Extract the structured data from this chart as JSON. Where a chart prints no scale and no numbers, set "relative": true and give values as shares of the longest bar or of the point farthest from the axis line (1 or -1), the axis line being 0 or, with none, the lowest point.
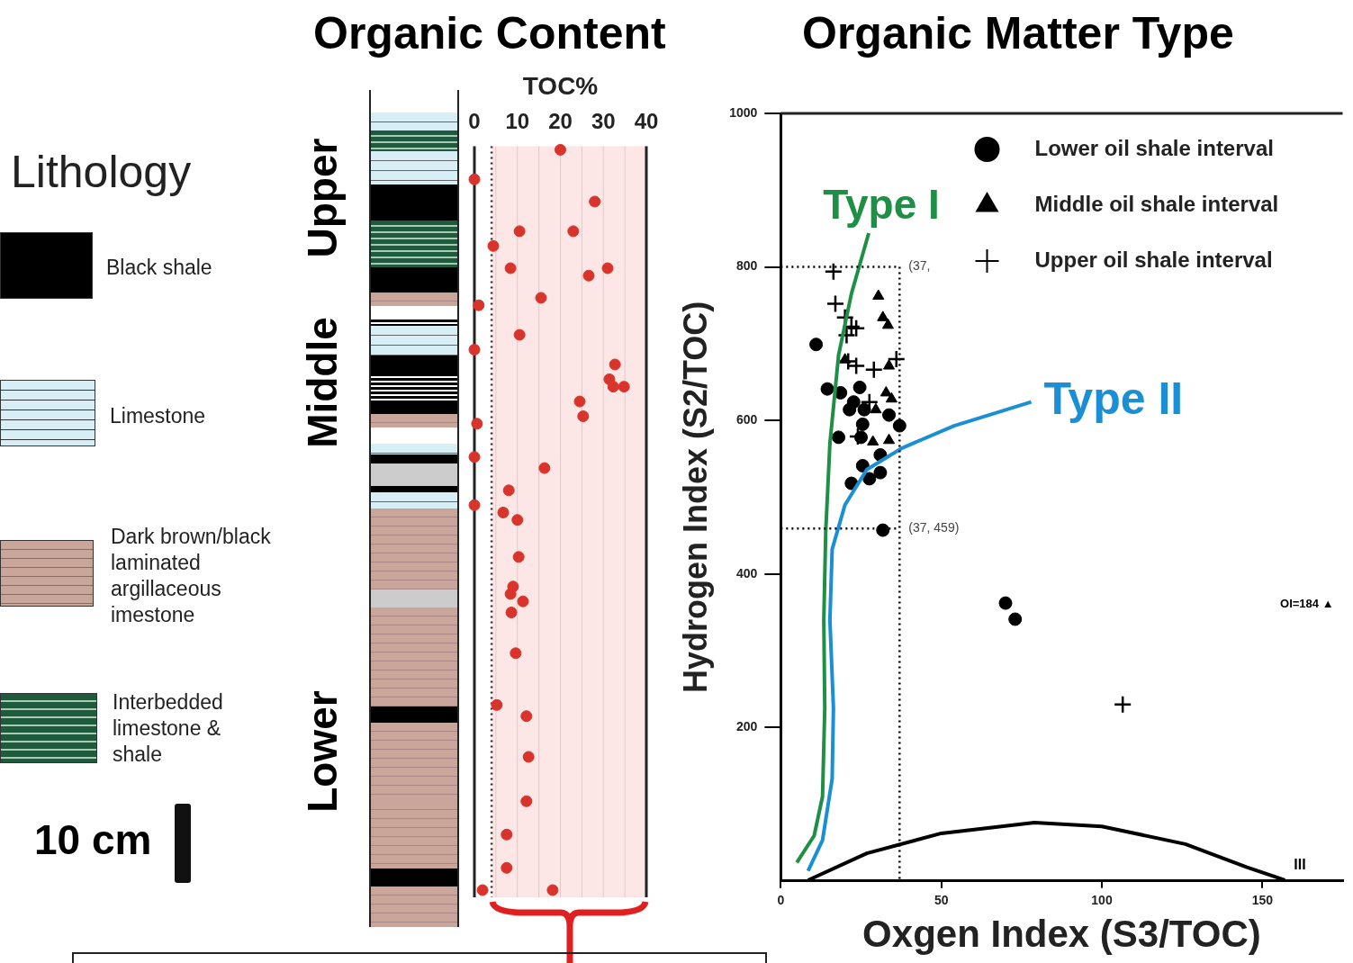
{
  "chart_data": [
    {
      "type": "other",
      "title": "Lithology",
      "annotations": [
        "Black shale",
        "Limestone",
        "Dark brown/black\nlaminated\nargillaceous\nimestone",
        "Interbedded\nlimestone &\nshale",
        "10 cm"
      ]
    },
    {
      "type": "scatter",
      "title": "Organic Content",
      "xlabel": "TOC%",
      "relative": true,
      "xlim": [
        0,
        40
      ],
      "xticks": [
        0,
        {
          "value": 5,
          "label": null
        },
        10,
        {
          "value": 15,
          "label": null
        },
        20,
        {
          "value": 25,
          "label": null
        },
        30,
        {
          "value": 35,
          "label": null
        },
        40
      ],
      "grid": "x",
      "marker": "circle",
      "ref_lines": [
        {
          "axis": "x",
          "value": 4,
          "line_style": "dotted",
          "color": "#333333"
        }
      ],
      "bands": [
        {
          "axis": "x",
          "from": 4,
          "to": 40,
          "color": "#fce6e6"
        }
      ],
      "annotations": [
        "Upper",
        "Middle",
        "Lower"
      ],
      "series": [
        {
          "color": "#d9342b",
          "x": [
            20,
            0,
            28,
            10.5,
            23,
            4.4,
            31,
            8.4,
            26.6,
            1,
            15.5,
            10.5,
            0,
            32.7,
            31.4,
            32.3,
            34.8,
            24.5,
            25.3,
            0.6,
            0,
            16.3,
            8,
            0,
            6.7,
            10,
            10.3,
            9,
            8.4,
            11.3,
            8.6,
            9.6,
            5.2,
            12.1,
            12.6,
            12.1,
            7.5,
            7.5,
            1.9,
            18.2
          ],
          "values": [
            1,
            0.96,
            0.93,
            0.89,
            0.89,
            0.87,
            0.84,
            0.84,
            0.83,
            0.79,
            0.8,
            0.75,
            0.73,
            0.71,
            0.69,
            0.68,
            0.68,
            0.66,
            0.64,
            0.63,
            0.585,
            0.57,
            0.54,
            0.52,
            0.51,
            0.5,
            0.45,
            0.41,
            0.4,
            0.39,
            0.375,
            0.32,
            0.25,
            0.235,
            0.18,
            0.12,
            0.075,
            0.03,
            0,
            0
          ]
        }
      ]
    },
    {
      "type": "scatter",
      "title": "Organic Matter Type",
      "xlabel": "Oxgen Index (S3/TOC)",
      "ylabel": "Hydrogen Index (S2/TOC)",
      "xlim": [
        0,
        175
      ],
      "xticks": [
        0,
        50,
        100,
        150
      ],
      "ylim": [
        0,
        1000
      ],
      "yticks": [
        200,
        400,
        600,
        800,
        1000
      ],
      "grid": false,
      "legend": "top right",
      "annotations": [
        {
          "text": "(37,",
          "x": 37,
          "y": 800
        },
        {
          "text": "(37, 459)",
          "x": 37,
          "y": 459
        },
        "OI=184 ▲"
      ],
      "series": [
        {
          "name": "Lower oil shale interval",
          "color": "#000000",
          "marker": "circle",
          "x": [
            11,
            14.5,
            18.6,
            24.6,
            22.7,
            21.4,
            26,
            33.7,
            37,
            25.5,
            18,
            25,
            31,
            25.5,
            31,
            27.6,
            22,
            31.8,
            70,
            73
          ],
          "values": [
            699,
            641,
            636,
            643,
            624,
            614,
            614,
            607,
            593,
            595,
            578,
            578,
            555,
            541,
            532,
            524,
            518,
            457,
            362,
            341
          ]
        },
        {
          "name": "Middle oil shale interval",
          "color": "#000000",
          "marker": "triangle",
          "x": [
            30.4,
            31.8,
            33.4,
            20,
            33.7,
            32.8,
            34.5,
            29.6,
            28.7,
            33.7
          ],
          "values": [
            762,
            734,
            724,
            679,
            671,
            636,
            628,
            614,
            572,
            574
          ]
        },
        {
          "name": "Upper oil shale interval",
          "color": "#000000",
          "marker": "cross",
          "x": [
            16.4,
            17,
            20,
            22,
            20.5,
            23.5,
            21,
            23.5,
            29,
            36,
            27.6,
            24,
            106.5
          ],
          "values": [
            794,
            752,
            734,
            722,
            711,
            720,
            677,
            671,
            666,
            680,
            624,
            579,
            230
          ]
        },
        {
          "type": "line",
          "name": "Type I",
          "color": "#1f8f45",
          "x": [
            5,
            10.4,
            13,
            13.7,
            13.4,
            14,
            15.3,
            18,
            22,
            27.4
          ],
          "values": [
            24,
            59,
            110,
            225,
            340,
            455,
            570,
            685,
            765,
            844
          ]
        },
        {
          "type": "line",
          "name": "Type II",
          "color": "#1a8fd6",
          "x": [
            8.5,
            13,
            16,
            16.4,
            15.3,
            16,
            20,
            26.8,
            37.8,
            54,
            78
          ],
          "values": [
            13,
            53,
            133,
            225,
            340,
            432,
            490,
            536,
            564,
            593,
            624
          ]
        },
        {
          "type": "line",
          "name": "III",
          "color": "#000000",
          "x": [
            8.5,
            26.8,
            50,
            79,
            100,
            126,
            145,
            157
          ],
          "values": [
            1,
            36,
            62,
            76,
            71,
            48,
            18,
            1
          ]
        },
        {
          "type": "line",
          "color": "#000000",
          "line_style": "dotted",
          "x": [
            0,
            37,
            37
          ],
          "values": [
            800,
            800,
            0
          ]
        },
        {
          "type": "line",
          "color": "#000000",
          "line_style": "dotted",
          "x": [
            0,
            37
          ],
          "values": [
            459,
            459
          ]
        }
      ]
    }
  ]
}
